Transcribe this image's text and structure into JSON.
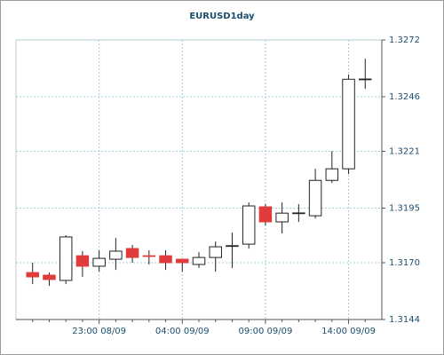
{
  "chart_data": {
    "type": "candlestick",
    "title": "EURUSD1day",
    "categories": [
      null,
      null,
      null,
      null,
      "23:00 08/09",
      null,
      null,
      null,
      null,
      "04:00 09/09",
      null,
      null,
      null,
      null,
      "09:00 09/09",
      null,
      null,
      null,
      null,
      "14:00 09/09",
      null
    ],
    "open": [
      1.31655,
      1.31643,
      1.31619,
      1.31732,
      1.31684,
      1.31716,
      1.31765,
      1.31732,
      1.31732,
      1.31716,
      1.31692,
      1.31724,
      1.31777,
      1.31785,
      1.31956,
      1.31887,
      1.31927,
      1.31915,
      1.32077,
      1.3213,
      1.3254
    ],
    "high": [
      1.317,
      1.31655,
      1.31826,
      1.31753,
      1.31757,
      1.31813,
      1.31781,
      1.31757,
      1.31757,
      1.31716,
      1.31749,
      1.31797,
      1.31838,
      1.31976,
      1.31968,
      1.31976,
      1.31968,
      1.3213,
      1.32211,
      1.32561,
      1.32634
    ],
    "low": [
      1.31602,
      1.31594,
      1.31602,
      1.31635,
      1.31659,
      1.31667,
      1.317,
      1.31692,
      1.31667,
      1.31659,
      1.31676,
      1.31659,
      1.31676,
      1.31765,
      1.3187,
      1.31834,
      1.31887,
      1.31903,
      1.32065,
      1.32106,
      1.32496
    ],
    "close": [
      1.31635,
      1.31623,
      1.31818,
      1.31684,
      1.3172,
      1.31753,
      1.31724,
      1.3173,
      1.317,
      1.317,
      1.31724,
      1.31773,
      1.31778,
      1.3196,
      1.31887,
      1.31927,
      1.31928,
      1.32077,
      1.3213,
      1.3254,
      1.32541
    ],
    "up_color": "#ffffff",
    "down_color": "#e03c3c",
    "ylim": [
      1.3144,
      1.3272
    ],
    "yticks": [
      1.3144,
      {
        "value": 1.317,
        "label": "1.3170"
      },
      1.3195,
      1.3221,
      1.3246,
      1.3272
    ],
    "grid": true
  }
}
